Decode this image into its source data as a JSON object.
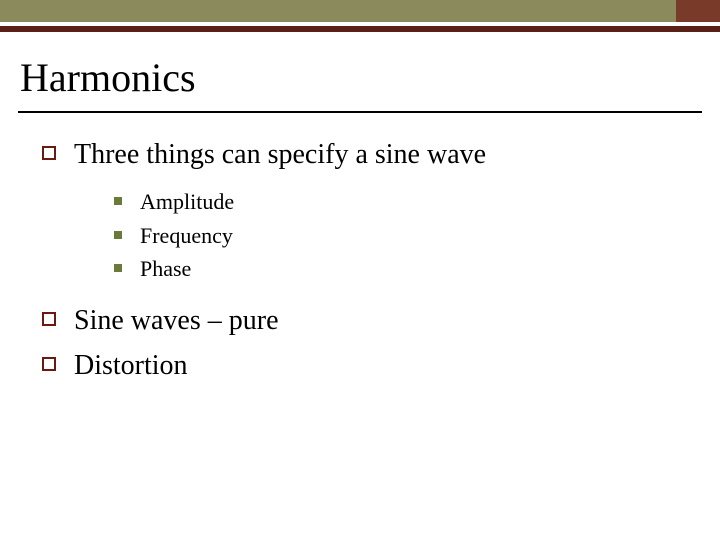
{
  "colors": {
    "olive_bar": "#8a8a5c",
    "maroon_bar": "#5a1f15",
    "accent_block": "#7a3a2a",
    "l1_bullet_border": "#6a1a10",
    "l2_square": "#6a7a3a",
    "rule": "#000000",
    "background": "#ffffff",
    "text": "#000000"
  },
  "typography": {
    "title_fontsize_pt": 30,
    "l1_fontsize_pt": 21,
    "l2_fontsize_pt": 16,
    "font_family": "Times New Roman"
  },
  "title": "Harmonics",
  "bullets": {
    "item1": {
      "label": "Three things can specify a sine wave",
      "sub": {
        "a": "Amplitude",
        "b": "Frequency",
        "c": "Phase"
      }
    },
    "item2": {
      "label": "Sine waves – pure"
    },
    "item3": {
      "label": "Distortion"
    }
  }
}
